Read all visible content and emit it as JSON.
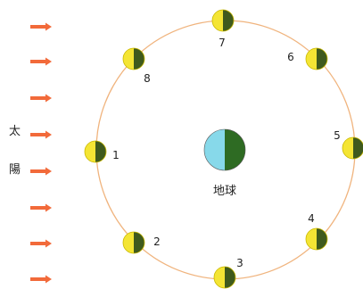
{
  "diagram": {
    "sun_label_top": "太",
    "sun_label_bottom": "陽",
    "earth_label": "地球",
    "moons": [
      {
        "label": "1"
      },
      {
        "label": "2"
      },
      {
        "label": "3"
      },
      {
        "label": "4"
      },
      {
        "label": "5"
      },
      {
        "label": "6"
      },
      {
        "label": "7"
      },
      {
        "label": "8"
      }
    ],
    "colors": {
      "orbit": "#f0b47e",
      "arrow": "#f26a3a",
      "moon_lit": "#f4e534",
      "moon_dark": "#3f5a1d",
      "moon_outline": "#c9b800",
      "earth_day": "#87d9ea",
      "earth_night": "#2e6b23"
    }
  }
}
